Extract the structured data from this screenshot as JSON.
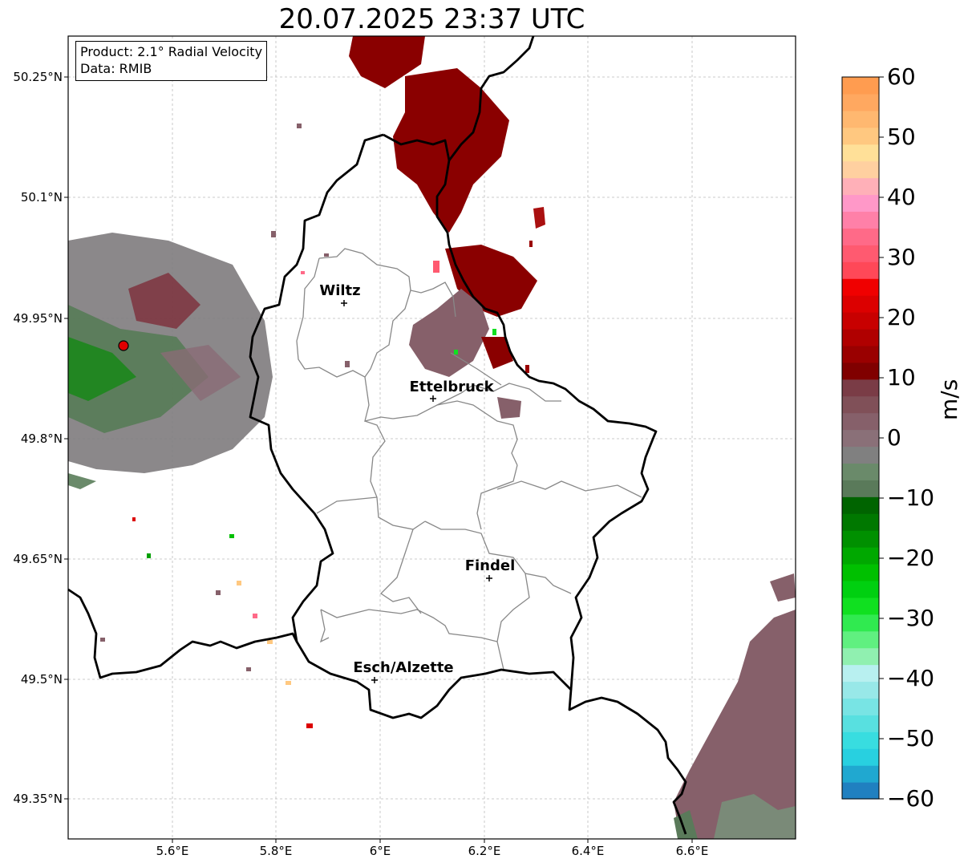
{
  "title": "20.07.2025 23:37 UTC",
  "info": {
    "product": "Product: 2.1° Radial Velocity",
    "data": "Data: RMIB"
  },
  "axes": {
    "lat_ticks": [
      "50.25°N",
      "50.1°N",
      "49.95°N",
      "49.8°N",
      "49.65°N",
      "49.5°N",
      "49.35°N"
    ],
    "lon_ticks": [
      "5.6°E",
      "5.8°E",
      "6°E",
      "6.2°E",
      "6.4°E",
      "6.6°E"
    ]
  },
  "cities": [
    {
      "name": "Wiltz"
    },
    {
      "name": "Ettelbruck"
    },
    {
      "name": "Findel"
    },
    {
      "name": "Esch/Alzette"
    }
  ],
  "colorbar": {
    "unit": "m/s",
    "ticks": [
      "60",
      "50",
      "40",
      "30",
      "20",
      "10",
      "0",
      "−10",
      "−20",
      "−30",
      "−40",
      "−50",
      "−60"
    ],
    "range": [
      -60,
      60
    ],
    "colors": [
      "#2080c0",
      "#20a8d0",
      "#28d0e0",
      "#38dde0",
      "#58e0e0",
      "#78e4e4",
      "#98e8e8",
      "#b8f0f0",
      "#90f0b0",
      "#60f080",
      "#30ea50",
      "#10e020",
      "#00d010",
      "#00c000",
      "#00a800",
      "#009000",
      "#007800",
      "#006400",
      "#5a7a5a",
      "#6a8a6a",
      "#808080",
      "#8a7078",
      "#86606a",
      "#805058",
      "#7a3c46",
      "#800000",
      "#9a0000",
      "#b00000",
      "#c80000",
      "#dc0000",
      "#f00000",
      "#ff4858",
      "#ff5a70",
      "#ff6a88",
      "#ff80a8",
      "#ff98c8",
      "#ffb0b8",
      "#ffd0a0",
      "#ffe098",
      "#ffc880",
      "#ffb870",
      "#ffa860",
      "#ff9c50"
    ]
  },
  "radar_site": {
    "color": "#e00000"
  }
}
